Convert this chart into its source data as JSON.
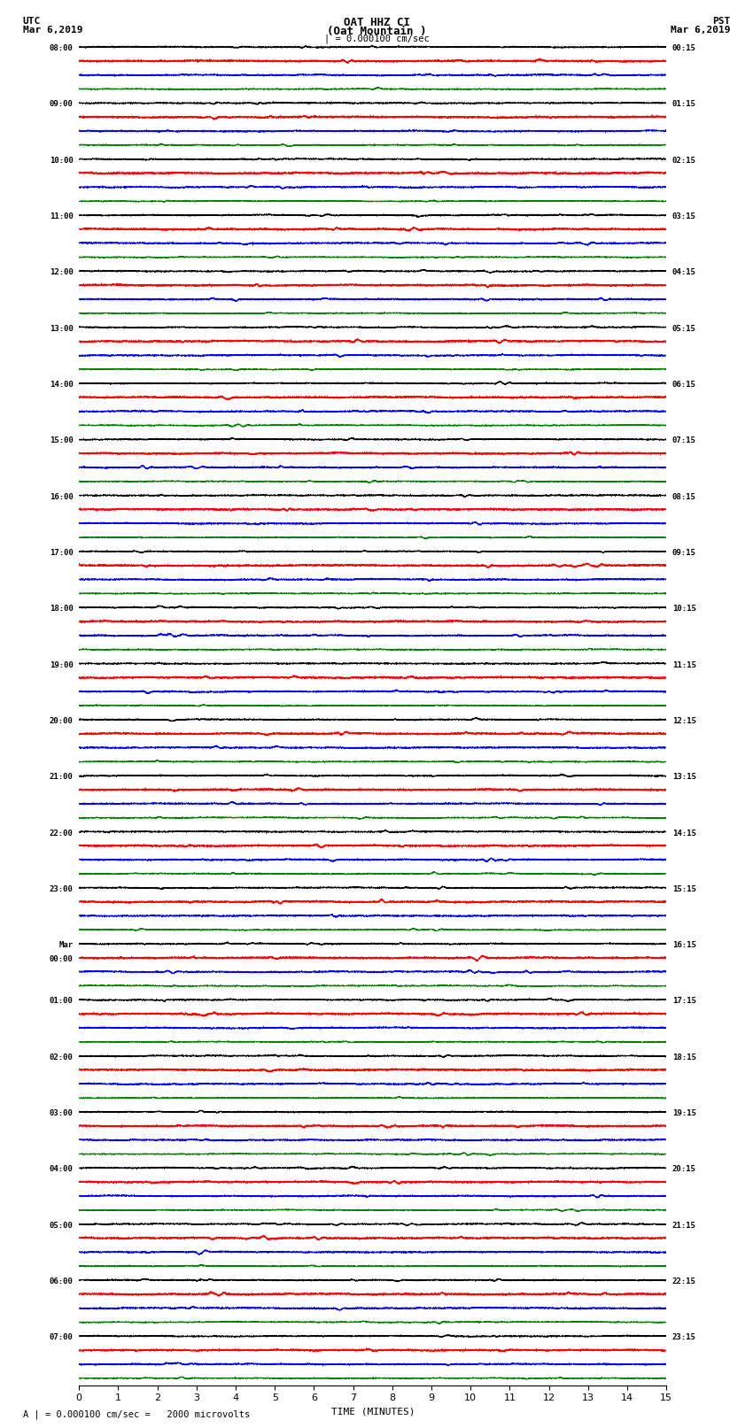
{
  "title_line1": "OAT HHZ CI",
  "title_line2": "(Oat Mountain )",
  "title_line3": "| = 0.000100 cm/sec",
  "bottom_label": "A | = 0.000100 cm/sec =   2000 microvolts",
  "xlabel": "TIME (MINUTES)",
  "left_times": [
    "08:00",
    "09:00",
    "10:00",
    "11:00",
    "12:00",
    "13:00",
    "14:00",
    "15:00",
    "16:00",
    "17:00",
    "18:00",
    "19:00",
    "20:00",
    "21:00",
    "22:00",
    "23:00",
    "Mar\n00:00",
    "01:00",
    "02:00",
    "03:00",
    "04:00",
    "05:00",
    "06:00",
    "07:00"
  ],
  "right_times": [
    "00:15",
    "01:15",
    "02:15",
    "03:15",
    "04:15",
    "05:15",
    "06:15",
    "07:15",
    "08:15",
    "09:15",
    "10:15",
    "11:15",
    "12:15",
    "13:15",
    "14:15",
    "15:15",
    "16:15",
    "17:15",
    "18:15",
    "19:15",
    "20:15",
    "21:15",
    "22:15",
    "23:15"
  ],
  "n_rows": 24,
  "n_traces_per_row": 4,
  "trace_colors": [
    "black",
    "red",
    "blue",
    "green"
  ],
  "bg_color": "white",
  "figsize": [
    8.5,
    16.13
  ],
  "dpi": 100,
  "xlim": [
    0,
    15
  ],
  "xticks": [
    0,
    1,
    2,
    3,
    4,
    5,
    6,
    7,
    8,
    9,
    10,
    11,
    12,
    13,
    14,
    15
  ]
}
